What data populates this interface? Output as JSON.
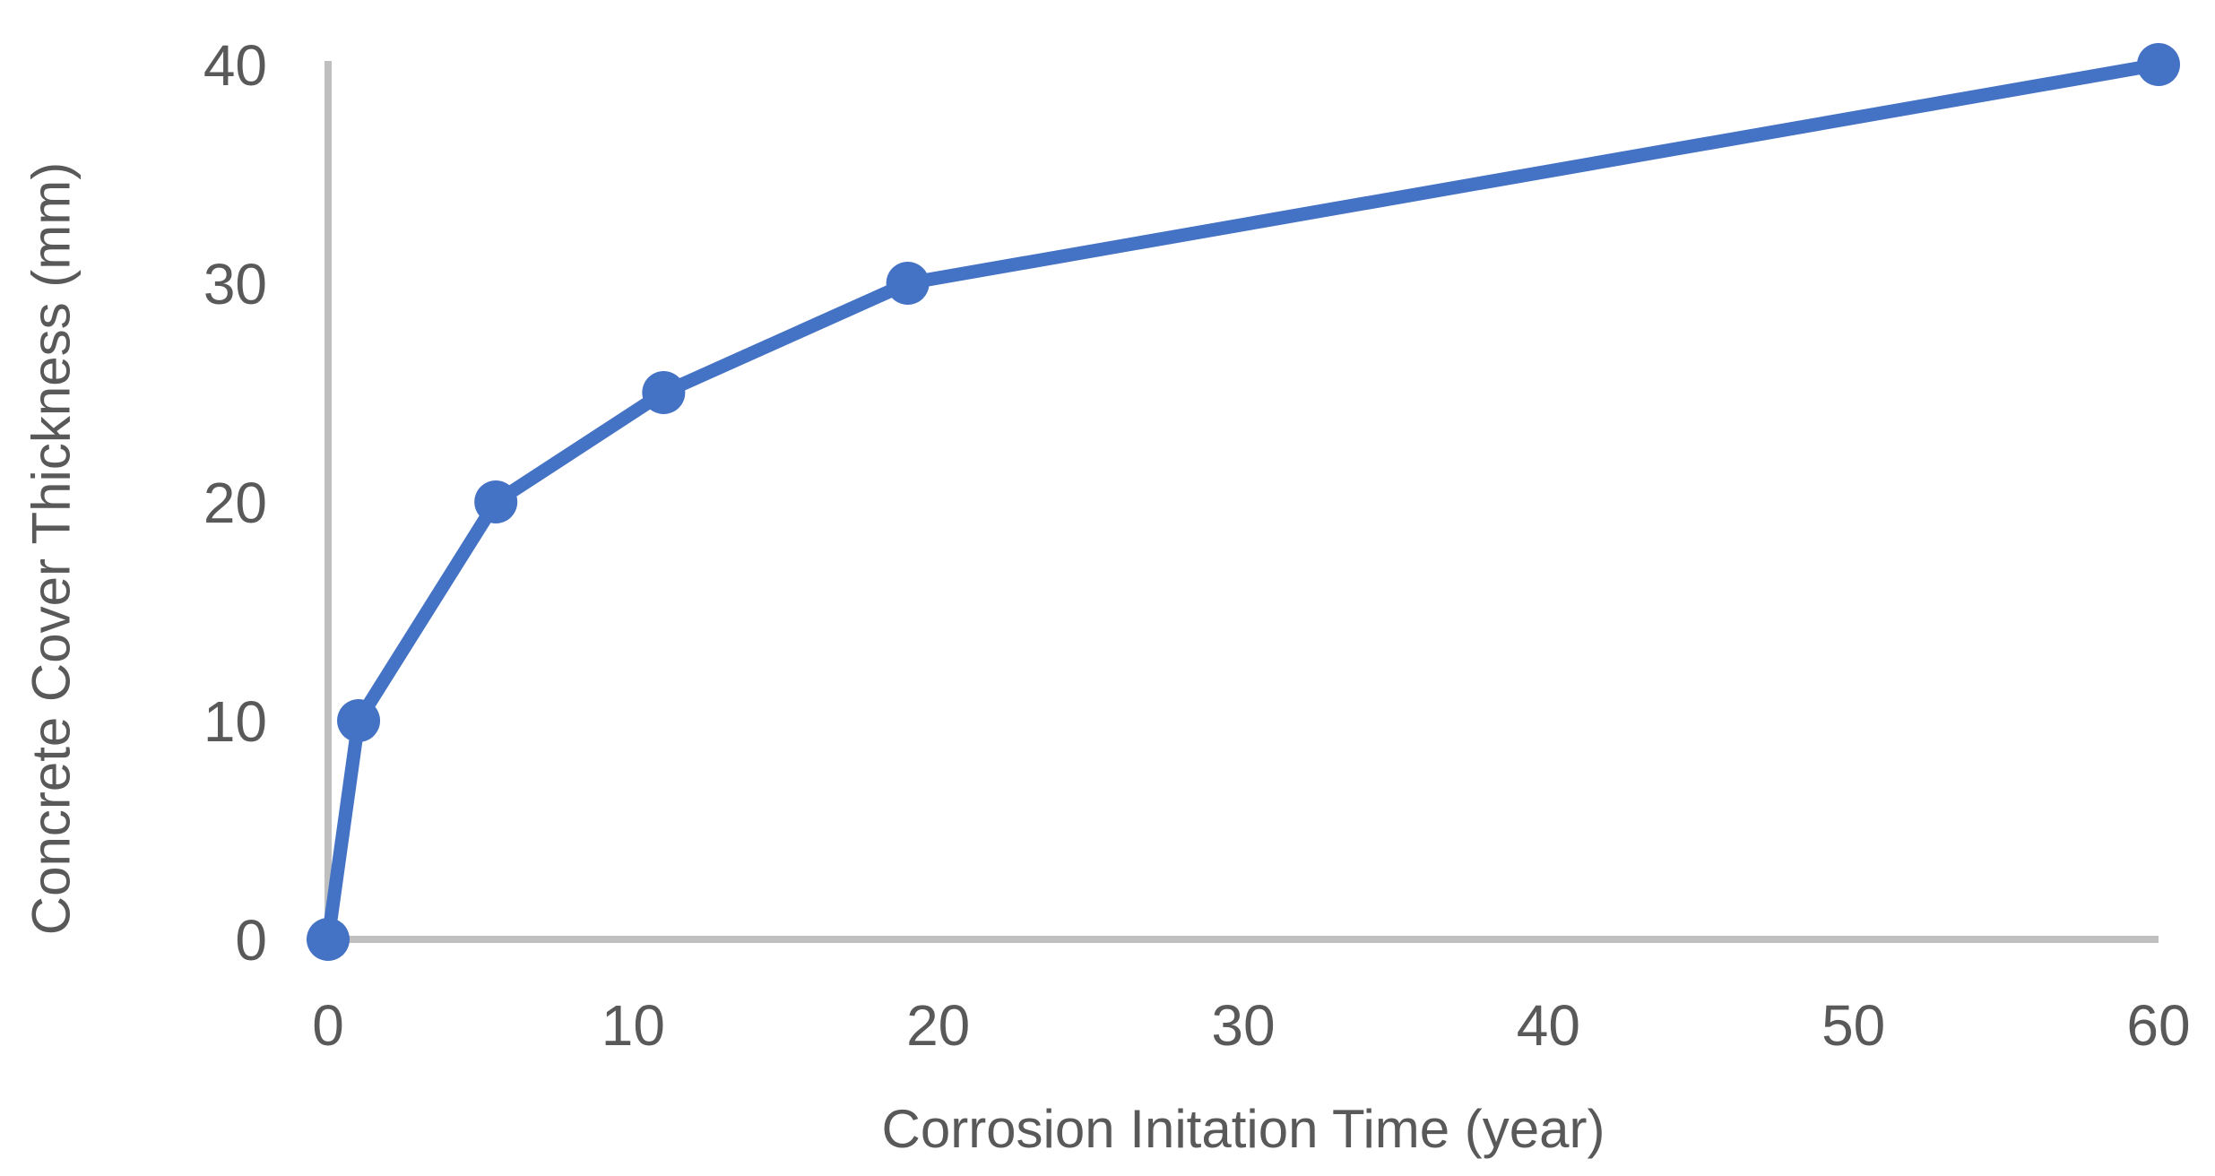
{
  "chart_data": {
    "type": "line",
    "title": "",
    "xlabel": "Corrosion Initation Time (year)",
    "ylabel": "Concrete Cover Thickness (mm)",
    "x": [
      0,
      1,
      5.5,
      11,
      19,
      60
    ],
    "y": [
      0,
      10,
      20,
      25,
      30,
      40
    ],
    "xlim": [
      0,
      60
    ],
    "ylim": [
      0,
      40
    ],
    "x_ticks": [
      0,
      10,
      20,
      30,
      40,
      50,
      60
    ],
    "y_ticks": [
      0,
      10,
      20,
      30,
      40
    ],
    "grid": false,
    "legend": false,
    "marker": "circle",
    "colors": {
      "line": "#4472C4",
      "marker": "#4472C4",
      "axis": "#BFBFBF",
      "text": "#595959",
      "background": "#FFFFFF"
    }
  }
}
